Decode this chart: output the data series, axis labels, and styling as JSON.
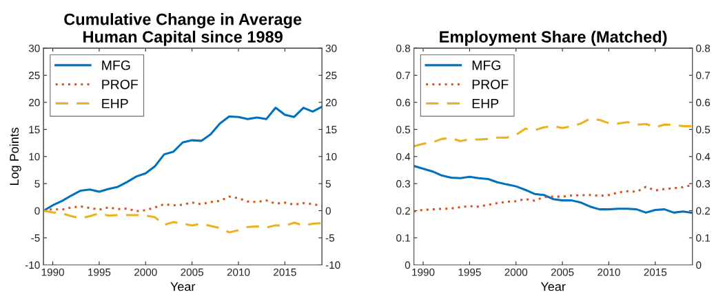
{
  "chart_data": [
    {
      "type": "line",
      "title": "Cumulative Change in Average\nHuman Capital since 1989",
      "xlabel": "Year",
      "ylabel": "Log Points",
      "x": [
        1989,
        1990,
        1991,
        1992,
        1993,
        1994,
        1995,
        1996,
        1997,
        1998,
        1999,
        2000,
        2001,
        2002,
        2003,
        2004,
        2005,
        2006,
        2007,
        2008,
        2009,
        2010,
        2011,
        2012,
        2013,
        2014,
        2015,
        2016,
        2017,
        2018,
        2019
      ],
      "series": [
        {
          "name": "MFG",
          "color": "#0072bd",
          "line_style": "solid",
          "values": [
            0,
            1.0,
            1.8,
            2.8,
            3.7,
            3.9,
            3.5,
            4.0,
            4.4,
            5.3,
            6.3,
            6.9,
            8.2,
            10.4,
            10.9,
            12.6,
            13.0,
            12.9,
            14.1,
            16.1,
            17.4,
            17.3,
            16.9,
            17.2,
            16.9,
            19.0,
            17.7,
            17.3,
            19.0,
            18.3,
            19.2
          ]
        },
        {
          "name": "PROF",
          "color": "#d95319",
          "line_style": "dotted",
          "values": [
            0,
            0.3,
            0.2,
            0.6,
            0.8,
            0.5,
            0.2,
            0.6,
            0.3,
            0.4,
            -0.1,
            0.1,
            0.6,
            1.2,
            1.0,
            1.1,
            1.5,
            1.2,
            1.6,
            1.8,
            2.6,
            2.3,
            1.7,
            1.6,
            1.9,
            1.3,
            1.5,
            1.1,
            1.4,
            1.2,
            0.9
          ]
        },
        {
          "name": "EHP",
          "color": "#edb120",
          "line_style": "dashed",
          "values": [
            0,
            -0.3,
            -0.5,
            -1.0,
            -1.4,
            -1.0,
            -0.5,
            -0.9,
            -0.8,
            -0.8,
            -0.8,
            -0.9,
            -1.2,
            -2.6,
            -2.1,
            -2.4,
            -2.7,
            -2.4,
            -2.8,
            -3.2,
            -4.0,
            -3.6,
            -3.0,
            -2.9,
            -3.1,
            -2.7,
            -2.8,
            -2.2,
            -2.7,
            -2.4,
            -2.3
          ]
        }
      ],
      "xlim": [
        1989,
        2019
      ],
      "xticks": [
        1990,
        1995,
        2000,
        2005,
        2010,
        2015
      ],
      "ylim": [
        -10,
        30
      ],
      "yticks": [
        -10,
        -5,
        0,
        5,
        10,
        15,
        20,
        25,
        30
      ],
      "y2lim": [
        -10,
        30
      ],
      "y2ticks": [
        -10,
        -5,
        0,
        5,
        10,
        15,
        20,
        25,
        30
      ],
      "legend": "top left",
      "grid": false
    },
    {
      "type": "line",
      "title": "Employment Share (Matched)",
      "xlabel": "Year",
      "x": [
        1989,
        1990,
        1991,
        1992,
        1993,
        1994,
        1995,
        1996,
        1997,
        1998,
        1999,
        2000,
        2001,
        2002,
        2003,
        2004,
        2005,
        2006,
        2007,
        2008,
        2009,
        2010,
        2011,
        2012,
        2013,
        2014,
        2015,
        2016,
        2017,
        2018,
        2019
      ],
      "series": [
        {
          "name": "MFG",
          "color": "#0072bd",
          "line_style": "solid",
          "values": [
            0.365,
            0.355,
            0.345,
            0.33,
            0.322,
            0.32,
            0.325,
            0.32,
            0.317,
            0.305,
            0.297,
            0.29,
            0.277,
            0.262,
            0.258,
            0.243,
            0.238,
            0.238,
            0.23,
            0.215,
            0.205,
            0.205,
            0.207,
            0.207,
            0.205,
            0.193,
            0.203,
            0.205,
            0.193,
            0.197,
            0.192
          ]
        },
        {
          "name": "PROF",
          "color": "#d95319",
          "line_style": "dotted",
          "values": [
            0.198,
            0.203,
            0.205,
            0.207,
            0.208,
            0.213,
            0.217,
            0.215,
            0.222,
            0.228,
            0.233,
            0.235,
            0.243,
            0.237,
            0.25,
            0.252,
            0.252,
            0.256,
            0.257,
            0.258,
            0.255,
            0.258,
            0.267,
            0.272,
            0.27,
            0.288,
            0.275,
            0.28,
            0.283,
            0.287,
            0.295
          ]
        },
        {
          "name": "EHP",
          "color": "#edb120",
          "line_style": "dashed",
          "values": [
            0.438,
            0.447,
            0.452,
            0.465,
            0.468,
            0.457,
            0.463,
            0.463,
            0.465,
            0.47,
            0.47,
            0.48,
            0.503,
            0.497,
            0.508,
            0.512,
            0.505,
            0.512,
            0.522,
            0.54,
            0.535,
            0.523,
            0.522,
            0.527,
            0.518,
            0.52,
            0.508,
            0.518,
            0.517,
            0.512,
            0.512
          ]
        }
      ],
      "xlim": [
        1989,
        2019
      ],
      "xticks": [
        1990,
        1995,
        2000,
        2005,
        2010,
        2015
      ],
      "ylim": [
        0,
        0.8
      ],
      "yticks": [
        0,
        0.1,
        0.2,
        0.3,
        0.4,
        0.5,
        0.6,
        0.7,
        0.8
      ],
      "y2lim": [
        0,
        0.8
      ],
      "y2ticks": [
        0,
        0.1,
        0.2,
        0.3,
        0.4,
        0.5,
        0.6,
        0.7,
        0.8
      ],
      "legend": "top left",
      "grid": false
    }
  ]
}
